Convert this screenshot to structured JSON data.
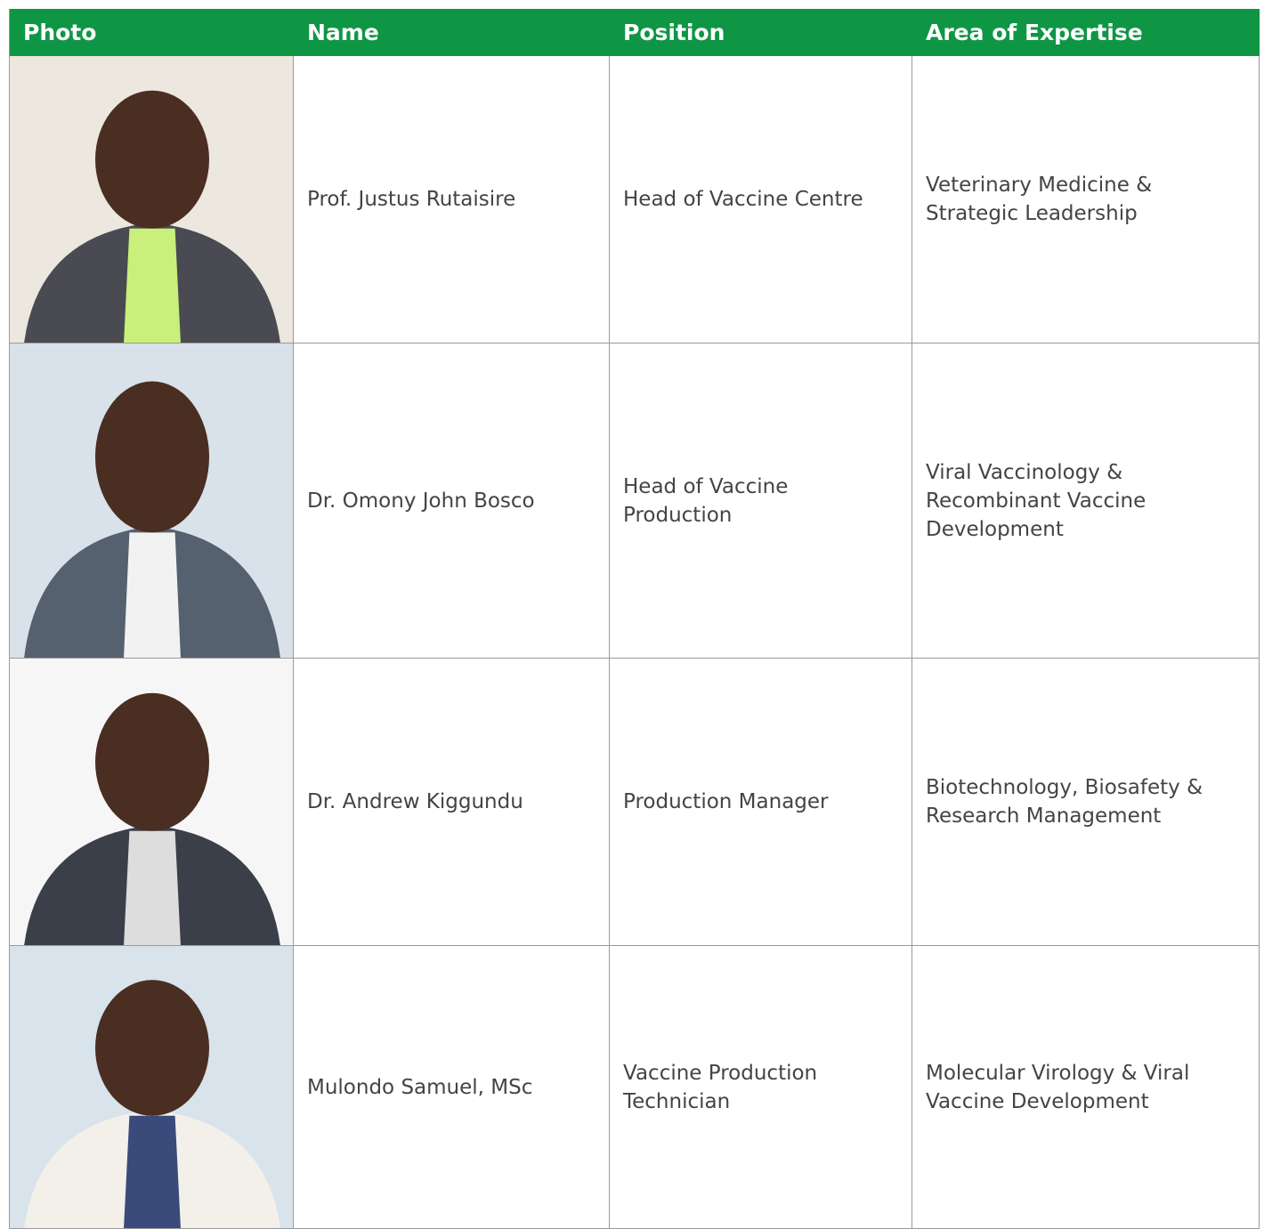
{
  "table": {
    "headers": [
      "Photo",
      "Name",
      "Position",
      "Area of Expertise"
    ],
    "rows": [
      [
        "Prof. Justus Rutaisire",
        "Head of Vaccine Centre",
        "Veterinary Medicine & Strategic Leadership"
      ],
      [
        "Dr. Omony John Bosco",
        "Head of Vaccine Production",
        "Viral Vaccinology & Recombinant Vaccine Development"
      ],
      [
        "Dr. Andrew Kiggundu",
        "Production Manager",
        "Biotechnology, Biosafety & Research Management"
      ],
      [
        "Mulondo Samuel, MSc",
        "Vaccine Production Technician",
        "Molecular Virology & Viral Vaccine Development"
      ]
    ]
  }
}
